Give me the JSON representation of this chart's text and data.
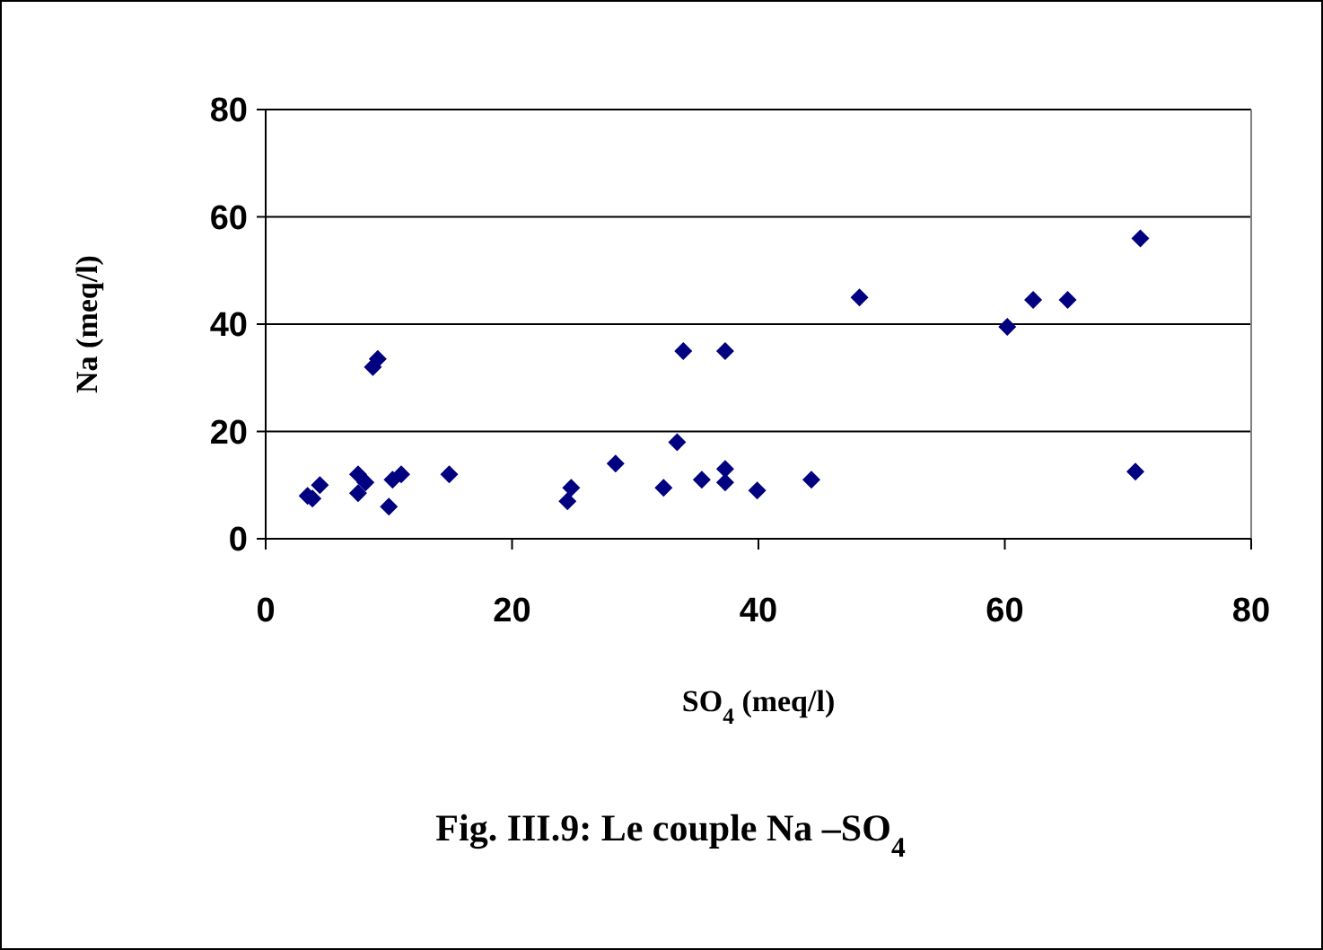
{
  "chart_data": {
    "type": "scatter",
    "title": "Fig. III.9: Le couple Na –SO$_{4}$",
    "xlabel": "SO$_{4}$ (meq/l)",
    "ylabel": "Na (meq/l)",
    "x": [
      3.4,
      3.8,
      4.4,
      7.5,
      8.1,
      7.5,
      9.1,
      8.7,
      10,
      10.3,
      11,
      14.9,
      24.5,
      24.8,
      28.4,
      32.3,
      33.4,
      33.9,
      37.3,
      35.4,
      37.3,
      37.3,
      39.9,
      44.3,
      48.2,
      60.2,
      62.3,
      65.1,
      71,
      70.6
    ],
    "series": [
      {
        "color": "#000080",
        "values": [
          8,
          7.5,
          10,
          12,
          10.5,
          8.5,
          33.5,
          32,
          6,
          11,
          12,
          12,
          7,
          9.5,
          14,
          9.5,
          18,
          35,
          35,
          11,
          13,
          10.5,
          9,
          11,
          45,
          39.5,
          44.5,
          44.5,
          56,
          12.5
        ]
      }
    ],
    "xlim": [
      0,
      80
    ],
    "ylim": [
      0,
      80
    ],
    "xticks": [
      0,
      20,
      40,
      60,
      80
    ],
    "yticks": [
      0,
      20,
      40,
      60,
      80
    ],
    "grid": "y",
    "marker": "diamond"
  }
}
